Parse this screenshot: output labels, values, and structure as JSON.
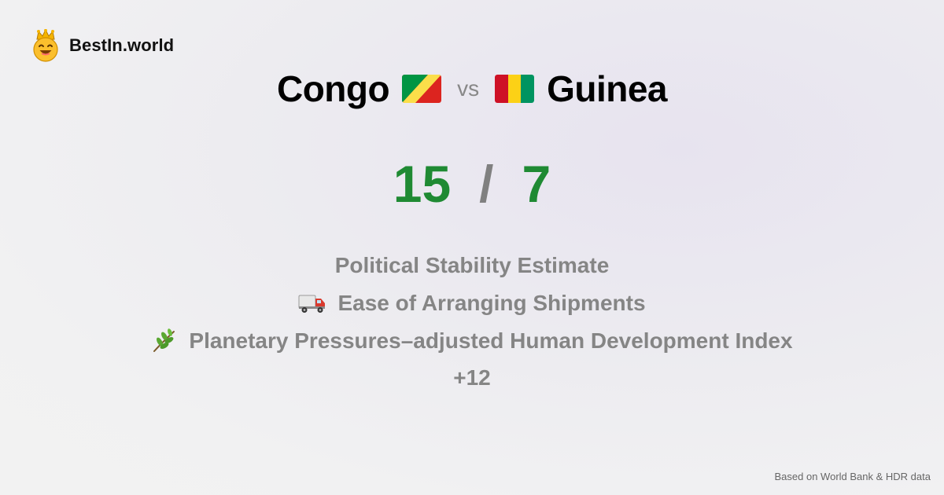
{
  "brand": {
    "name": "BestIn.world",
    "icon": "crowned-smiley-icon"
  },
  "comparison": {
    "left_country": "Congo",
    "left_flag": "congo-flag-icon",
    "vs_label": "vs",
    "right_country": "Guinea",
    "right_flag": "guinea-flag-icon"
  },
  "scores": {
    "left": "15",
    "separator": "/",
    "right": "7"
  },
  "metrics": [
    {
      "label": "Political Stability Estimate",
      "icon": ""
    },
    {
      "label": "Ease of Arranging Shipments",
      "icon": "delivery-truck-icon"
    },
    {
      "label": "Planetary Pressures–adjusted Human Development Index",
      "icon": "herb-icon"
    }
  ],
  "more_label": "+12",
  "footer": "Based on World Bank & HDR data",
  "colors": {
    "score_green": "#1f8a33",
    "muted_gray": "#858585",
    "title_black": "#000000"
  }
}
